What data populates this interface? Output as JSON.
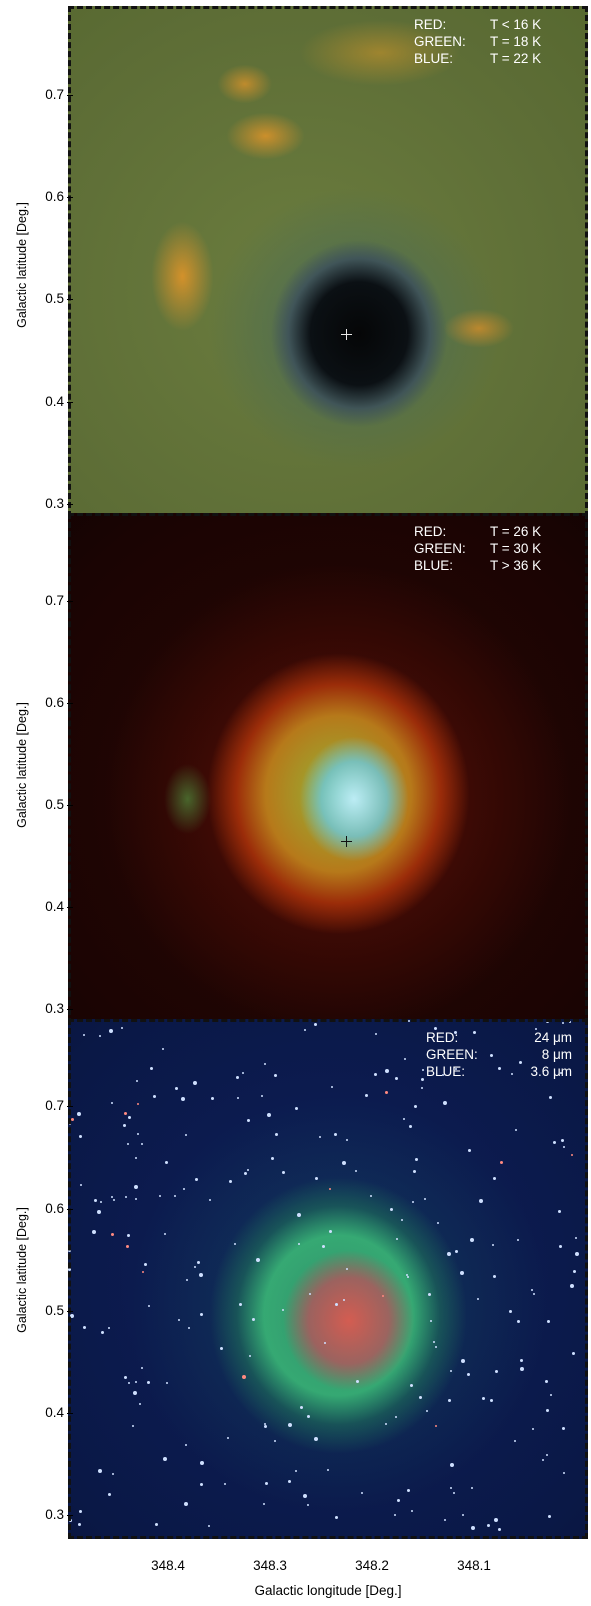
{
  "panels": [
    {
      "legend": [
        {
          "name": "RED:",
          "value": "T < 16 K"
        },
        {
          "name": "GREEN:",
          "value": "T = 18 K"
        },
        {
          "name": "BLUE:",
          "value": "T = 22 K"
        }
      ],
      "ylabel": "Galactic latitude [Deg.]",
      "yticks": [
        "0.7",
        "0.6",
        "0.5",
        "0.4",
        "0.3"
      ],
      "marker_color": "#e8e8e8"
    },
    {
      "legend": [
        {
          "name": "RED:",
          "value": "T = 26 K"
        },
        {
          "name": "GREEN:",
          "value": "T = 30 K"
        },
        {
          "name": "BLUE:",
          "value": "T > 36 K"
        }
      ],
      "ylabel": "Galactic latitude [Deg.]",
      "yticks": [
        "0.7",
        "0.6",
        "0.5",
        "0.4",
        "0.3"
      ],
      "marker_color": "#111111"
    },
    {
      "legend": [
        {
          "name": "RED:",
          "value": "24 μm"
        },
        {
          "name": "GREEN:",
          "value": "8 μm"
        },
        {
          "name": "BLUE:",
          "value": "3.6 μm"
        }
      ],
      "ylabel": "Galactic latitude [Deg.]",
      "yticks": [
        "0.7",
        "0.6",
        "0.5",
        "0.4",
        "0.3"
      ],
      "marker_color": "#3a3a3a"
    }
  ],
  "xaxis": {
    "ticks": [
      "348.4",
      "348.3",
      "348.2",
      "348.1"
    ],
    "label": "Galactic longitude [Deg.]"
  }
}
